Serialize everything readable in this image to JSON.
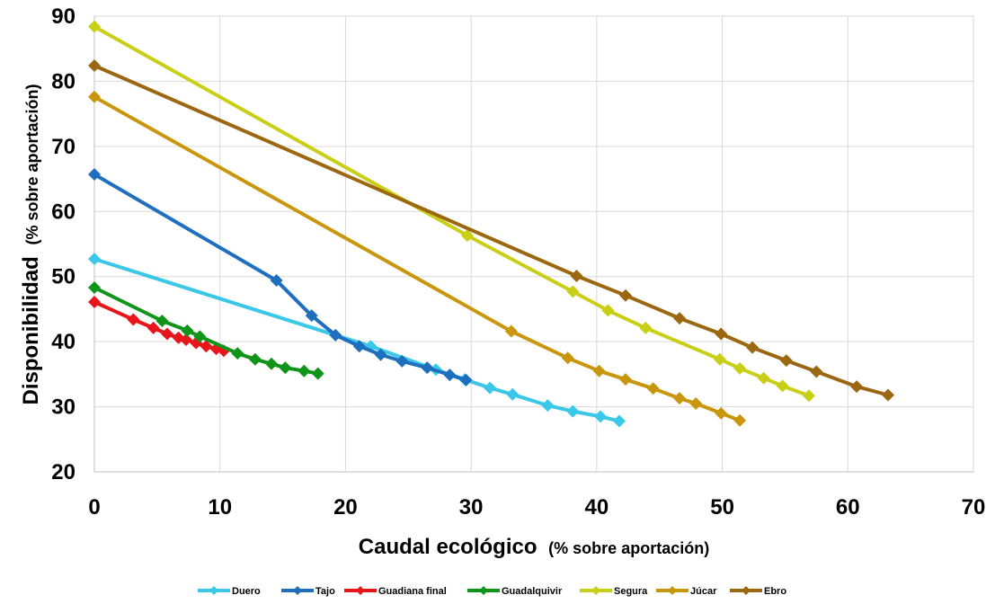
{
  "chart_data": {
    "type": "line",
    "title": "",
    "xlabel": "Caudal ecológico",
    "xlabel_suffix": "(% sobre aportación)",
    "ylabel": "Disponibilidad",
    "ylabel_suffix": "(% sobre aportación)",
    "xlim": [
      0,
      70
    ],
    "ylim": [
      20,
      90
    ],
    "xticks": [
      0,
      10,
      20,
      30,
      40,
      50,
      60,
      70
    ],
    "yticks": [
      20,
      30,
      40,
      50,
      60,
      70,
      80,
      90
    ],
    "grid": "horizontal and vertical",
    "legend_position": "bottom",
    "series": [
      {
        "name": "Duero",
        "color": "#3ac7e8",
        "points": [
          [
            0,
            52.7
          ],
          [
            22,
            39.3
          ],
          [
            27.2,
            35.7
          ],
          [
            29.5,
            34.2
          ],
          [
            31.5,
            32.9
          ],
          [
            33.3,
            31.9
          ],
          [
            36.1,
            30.2
          ],
          [
            38.1,
            29.3
          ],
          [
            40.3,
            28.5
          ],
          [
            41.8,
            27.8
          ]
        ]
      },
      {
        "name": "Tajo",
        "color": "#1f6fbf",
        "points": [
          [
            0,
            65.7
          ],
          [
            14.5,
            49.4
          ],
          [
            17.3,
            44.0
          ],
          [
            19.2,
            41.0
          ],
          [
            21.1,
            39.3
          ],
          [
            22.8,
            38.0
          ],
          [
            24.5,
            37.0
          ],
          [
            26.5,
            36.0
          ],
          [
            28.3,
            34.9
          ],
          [
            29.6,
            34.1
          ]
        ]
      },
      {
        "name": "Guadiana final",
        "color": "#e8161b",
        "points": [
          [
            0,
            46.1
          ],
          [
            3.1,
            43.4
          ],
          [
            4.7,
            42.1
          ],
          [
            5.8,
            41.2
          ],
          [
            6.7,
            40.6
          ],
          [
            7.3,
            40.3
          ],
          [
            8.1,
            39.8
          ],
          [
            8.9,
            39.3
          ],
          [
            9.7,
            38.9
          ],
          [
            10.3,
            38.6
          ]
        ]
      },
      {
        "name": "Guadalquivir",
        "color": "#10941a",
        "points": [
          [
            0,
            48.3
          ],
          [
            5.4,
            43.2
          ],
          [
            7.4,
            41.7
          ],
          [
            8.4,
            40.8
          ],
          [
            11.4,
            38.2
          ],
          [
            12.8,
            37.3
          ],
          [
            14.1,
            36.6
          ],
          [
            15.2,
            36.0
          ],
          [
            16.7,
            35.5
          ],
          [
            17.8,
            35.1
          ]
        ]
      },
      {
        "name": "Segura",
        "color": "#c9cf16",
        "points": [
          [
            0,
            88.4
          ],
          [
            29.7,
            56.3
          ],
          [
            38.1,
            47.7
          ],
          [
            40.9,
            44.8
          ],
          [
            43.9,
            42.1
          ],
          [
            49.8,
            37.3
          ],
          [
            51.4,
            35.9
          ],
          [
            53.3,
            34.4
          ],
          [
            54.8,
            33.2
          ],
          [
            56.9,
            31.7
          ]
        ]
      },
      {
        "name": "Júcar",
        "color": "#c9970d",
        "points": [
          [
            0,
            77.6
          ],
          [
            33.2,
            41.6
          ],
          [
            37.7,
            37.5
          ],
          [
            40.2,
            35.5
          ],
          [
            42.3,
            34.2
          ],
          [
            44.5,
            32.8
          ],
          [
            46.6,
            31.3
          ],
          [
            47.9,
            30.5
          ],
          [
            49.9,
            29.0
          ],
          [
            51.4,
            27.9
          ]
        ]
      },
      {
        "name": "Ebro",
        "color": "#9b6710",
        "points": [
          [
            0,
            82.4
          ],
          [
            38.4,
            50.1
          ],
          [
            42.3,
            47.1
          ],
          [
            46.6,
            43.6
          ],
          [
            49.9,
            41.2
          ],
          [
            52.4,
            39.1
          ],
          [
            55.1,
            37.1
          ],
          [
            57.5,
            35.4
          ],
          [
            60.7,
            33.1
          ],
          [
            63.2,
            31.8
          ]
        ]
      }
    ]
  }
}
